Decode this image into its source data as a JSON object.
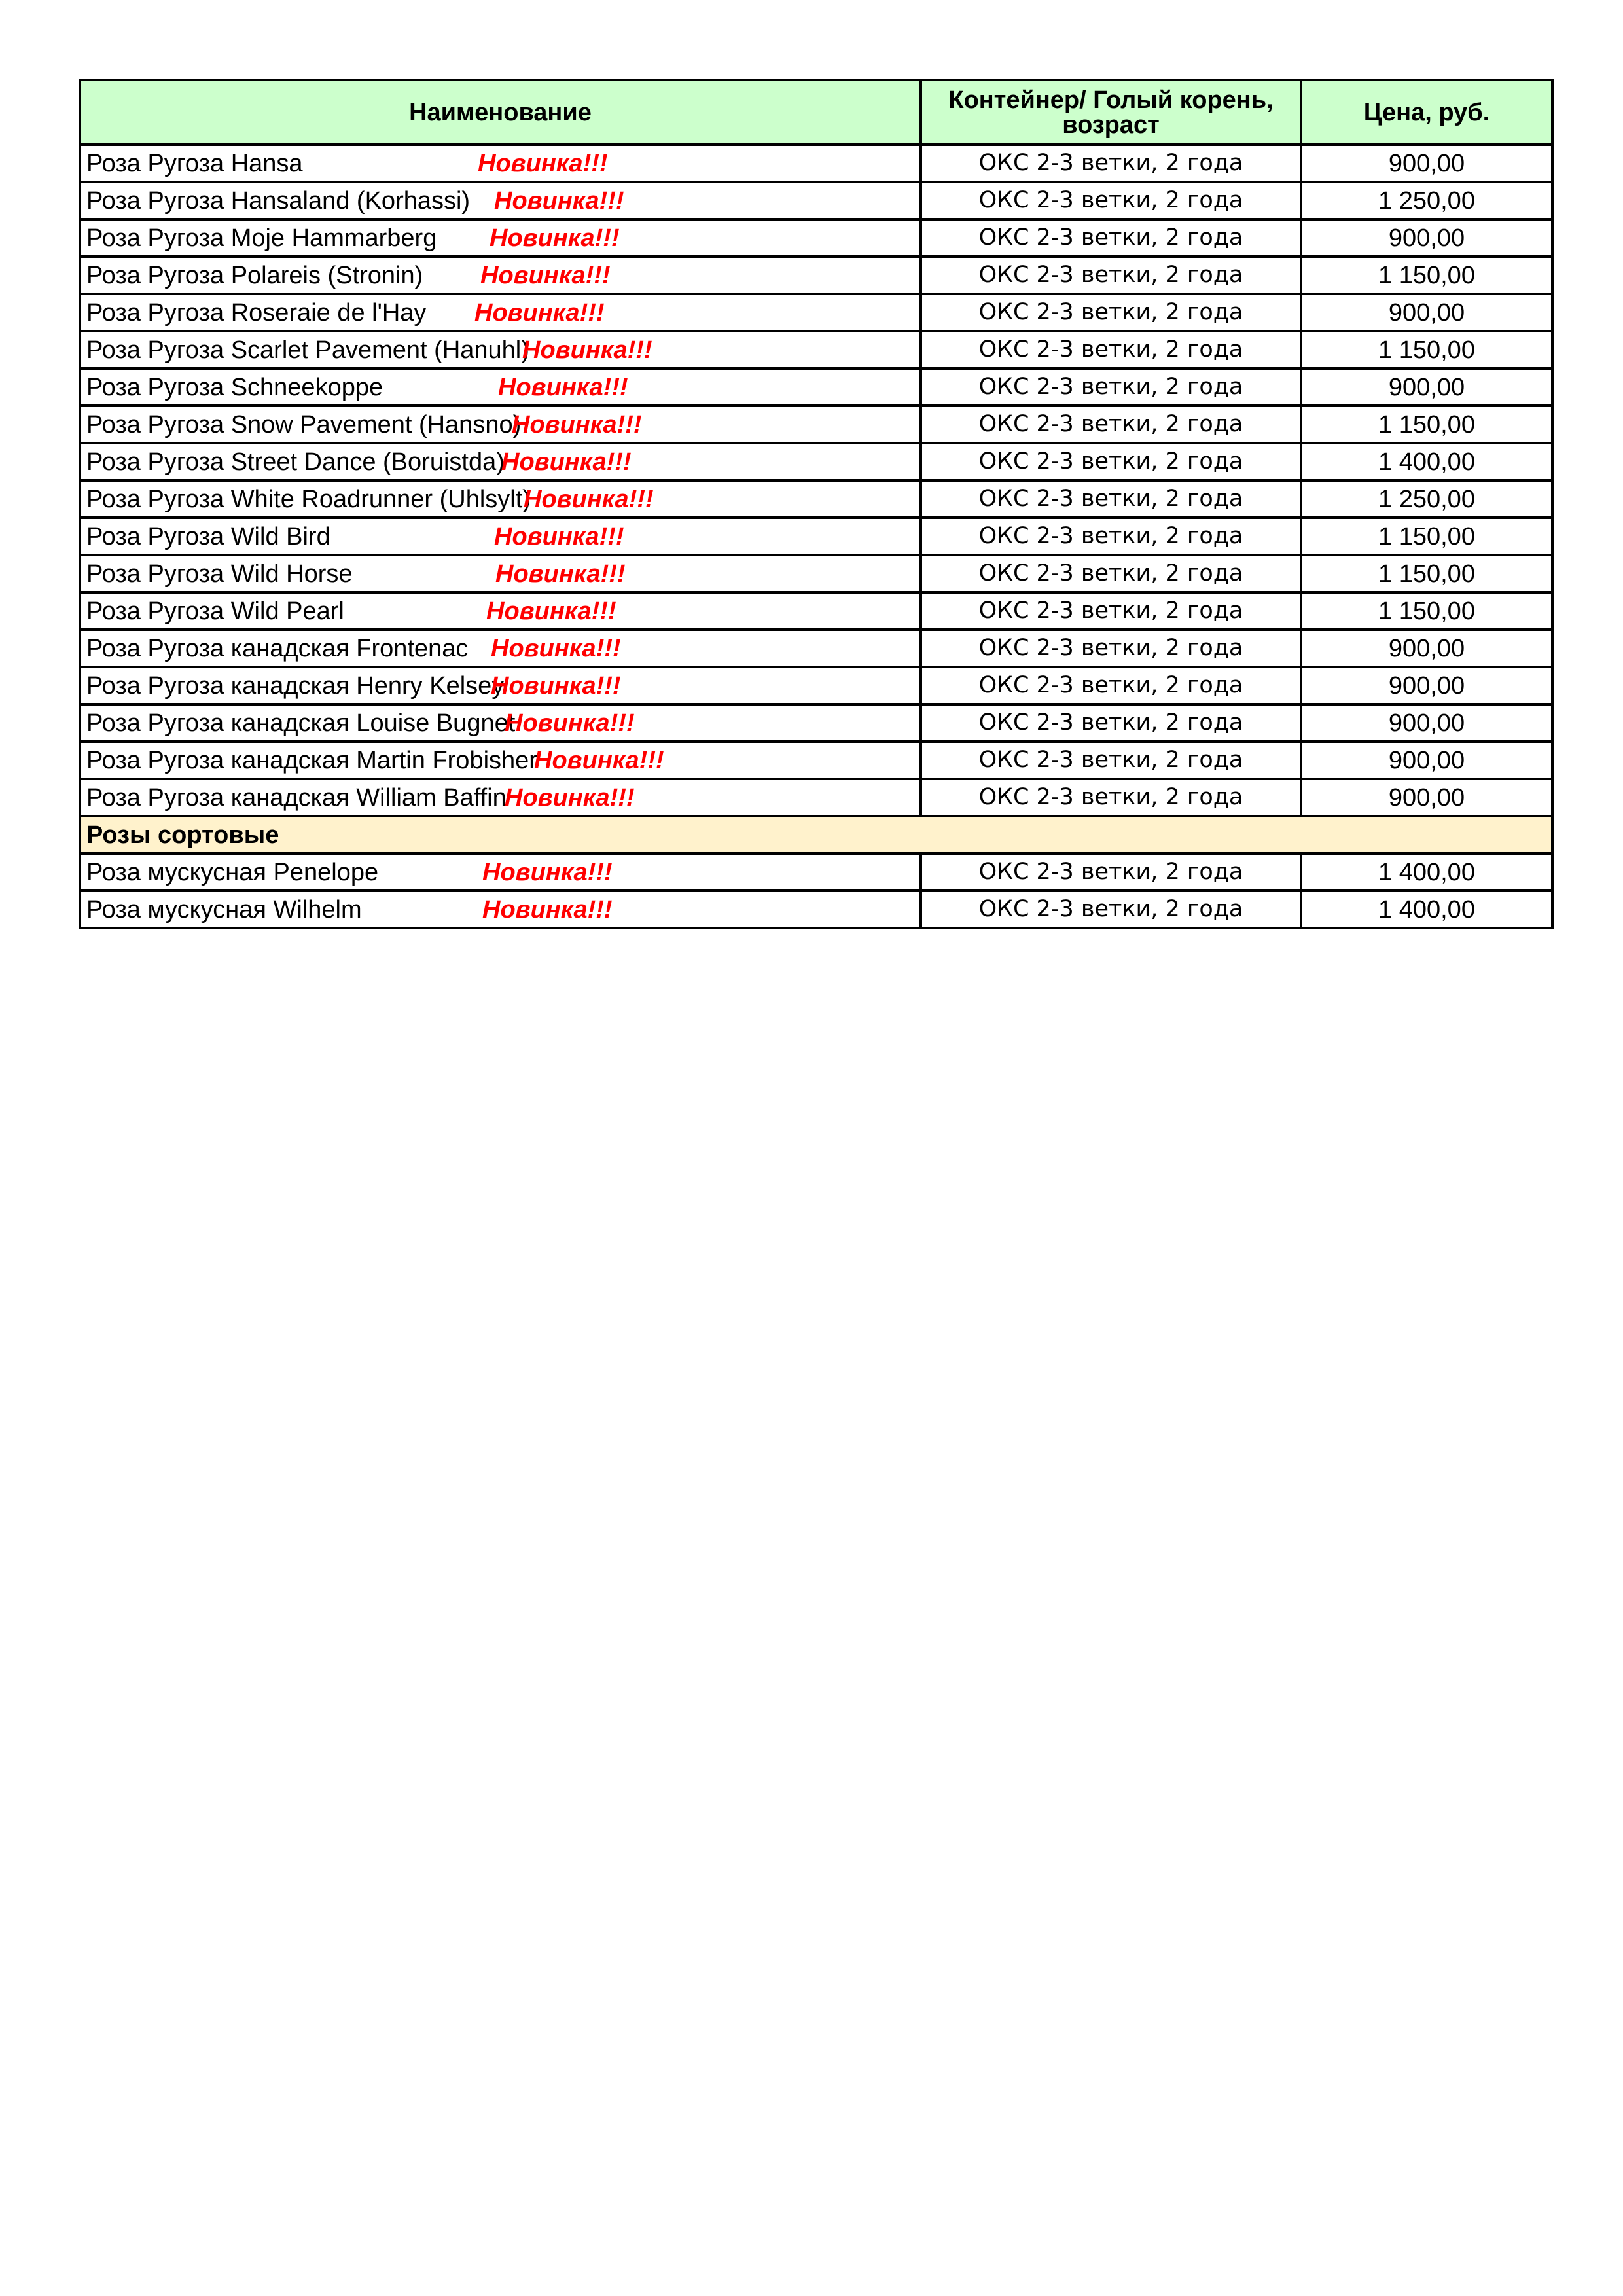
{
  "header": {
    "name": "Наименование",
    "container": "Контейнер/ Голый корень, возраст",
    "price": "Цена, руб."
  },
  "badge": "Новинка!!!",
  "colors": {
    "header_bg": "#ccffcc",
    "section_bg": "#fff2cc",
    "badge": "#ff0000"
  },
  "rows": [
    {
      "name": "Роза Ругоза  Hansa",
      "badge": "Новинка!!!",
      "container": "ОКС 2-3 ветки, 2 года",
      "price": "900,00"
    },
    {
      "name": "Роза Ругоза  Hansaland (Korhassi)",
      "badge": "Новинка!!!",
      "container": "ОКС 2-3 ветки, 2 года",
      "price": "1 250,00"
    },
    {
      "name": "Роза Ругоза  Moje Hammarberg",
      "badge": "Новинка!!!",
      "container": "ОКС 2-3 ветки, 2 года",
      "price": "900,00"
    },
    {
      "name": "Роза Ругоза  Polareis (Stronin)",
      "badge": "Новинка!!!",
      "container": "ОКС 2-3 ветки, 2 года",
      "price": "1 150,00"
    },
    {
      "name": "Роза Ругоза  Roseraie de l'Hay",
      "badge": "Новинка!!!",
      "container": "ОКС 2-3 ветки, 2 года",
      "price": "900,00"
    },
    {
      "name": "Роза Ругоза  Scarlet Pavement (Hanuhl)",
      "badge": "Новинка!!!",
      "container": "ОКС 2-3 ветки, 2 года",
      "price": "1 150,00"
    },
    {
      "name": "Роза Ругоза  Schneekoppe",
      "badge": "Новинка!!!",
      "container": "ОКС 2-3 ветки, 2 года",
      "price": "900,00"
    },
    {
      "name": "Роза Ругоза  Snow Pavement (Hansno)",
      "badge": "Новинка!!!",
      "container": "ОКС 2-3 ветки, 2 года",
      "price": "1 150,00"
    },
    {
      "name": "Роза Ругоза  Street Dance (Boruistda)",
      "badge": "Новинка!!!",
      "container": "ОКС 2-3 ветки, 2 года",
      "price": "1 400,00"
    },
    {
      "name": "Роза Ругоза  White Roadrunner (Uhlsylt)",
      "badge": "Новинка!!!",
      "container": "ОКС 2-3 ветки, 2 года",
      "price": "1 250,00"
    },
    {
      "name": "Роза Ругоза  Wild Bird",
      "badge": "Новинка!!!",
      "container": "ОКС 2-3 ветки, 2 года",
      "price": "1 150,00"
    },
    {
      "name": "Роза Ругоза  Wild Horse",
      "badge": "Новинка!!!",
      "container": "ОКС 2-3 ветки, 2 года",
      "price": "1 150,00"
    },
    {
      "name": "Роза Ругоза  Wild Pearl",
      "badge": "Новинка!!!",
      "container": "ОКС 2-3 ветки, 2 года",
      "price": "1 150,00"
    },
    {
      "name": "Роза Ругоза  канадская Frontenac",
      "badge": "Новинка!!!",
      "container": "ОКС 2-3 ветки, 2 года",
      "price": "900,00"
    },
    {
      "name": "Роза Ругоза  канадская Henry Kelsey",
      "badge": "Новинка!!!",
      "container": "ОКС 2-3 ветки, 2 года",
      "price": "900,00"
    },
    {
      "name": "Роза Ругоза  канадская Louise Bugnet",
      "badge": "Новинка!!!",
      "container": "ОКС 2-3 ветки, 2 года",
      "price": "900,00"
    },
    {
      "name": "Роза Ругоза  канадская Martin Frobisher",
      "badge": "Новинка!!!",
      "container": "ОКС 2-3 ветки, 2 года",
      "price": "900,00"
    },
    {
      "name": "Роза Ругоза  канадская William Baffin",
      "badge": "Новинка!!!",
      "container": "ОКС 2-3 ветки, 2 года",
      "price": "900,00"
    },
    {
      "section": "Розы сортовые"
    },
    {
      "name": "Роза мускусная Penelope",
      "badge": "Новинка!!!",
      "container": "ОКС 2-3 ветки, 2 года",
      "price": "1 400,00"
    },
    {
      "name": "Роза мускусная Wilhelm",
      "badge": "Новинка!!!",
      "container": "ОКС 2-3 ветки, 2 года",
      "price": "1 400,00"
    }
  ]
}
